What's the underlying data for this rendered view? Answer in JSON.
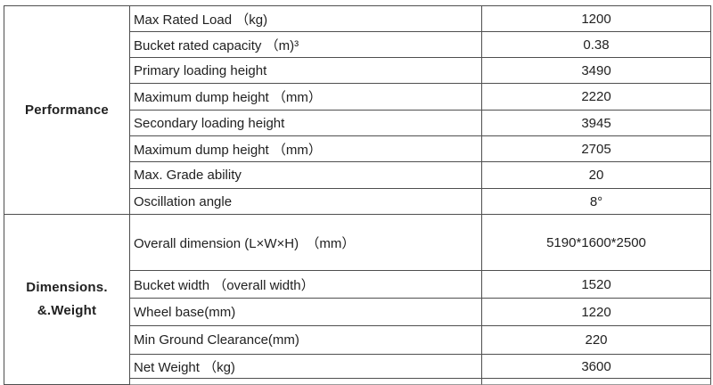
{
  "table": {
    "sections": [
      {
        "label": "Performance"
      },
      {
        "label_lines": [
          "Dimensions.",
          "&.Weight"
        ]
      }
    ],
    "rows": [
      {
        "param": "Max Rated Load （kg)",
        "value": "1200"
      },
      {
        "param": "Bucket rated capacity （m)³",
        "value": "0.38"
      },
      {
        "param": "Primary loading height",
        "value": "3490"
      },
      {
        "param": "Maximum dump height （mm）",
        "value": "2220"
      },
      {
        "param": "Secondary loading height",
        "value": "3945"
      },
      {
        "param": "Maximum dump height （mm）",
        "value": "2705"
      },
      {
        "param": "Max. Grade ability",
        "value": "20"
      },
      {
        "param": "Oscillation angle",
        "value": "8°"
      },
      {
        "param": "Overall dimension (L×W×H)  （mm）",
        "value": "5190*1600*2500"
      },
      {
        "param": "Bucket width （overall width）",
        "value": "1520"
      },
      {
        "param": "Wheel base(mm)",
        "value": "1220"
      },
      {
        "param": "Min Ground Clearance(mm)",
        "value": "220"
      },
      {
        "param": "Net Weight （kg)",
        "value": "3600"
      }
    ],
    "colors": {
      "border": "#4f4f4f",
      "border_light": "#9b9b9b",
      "text": "#212121",
      "background": "#ffffff"
    }
  }
}
